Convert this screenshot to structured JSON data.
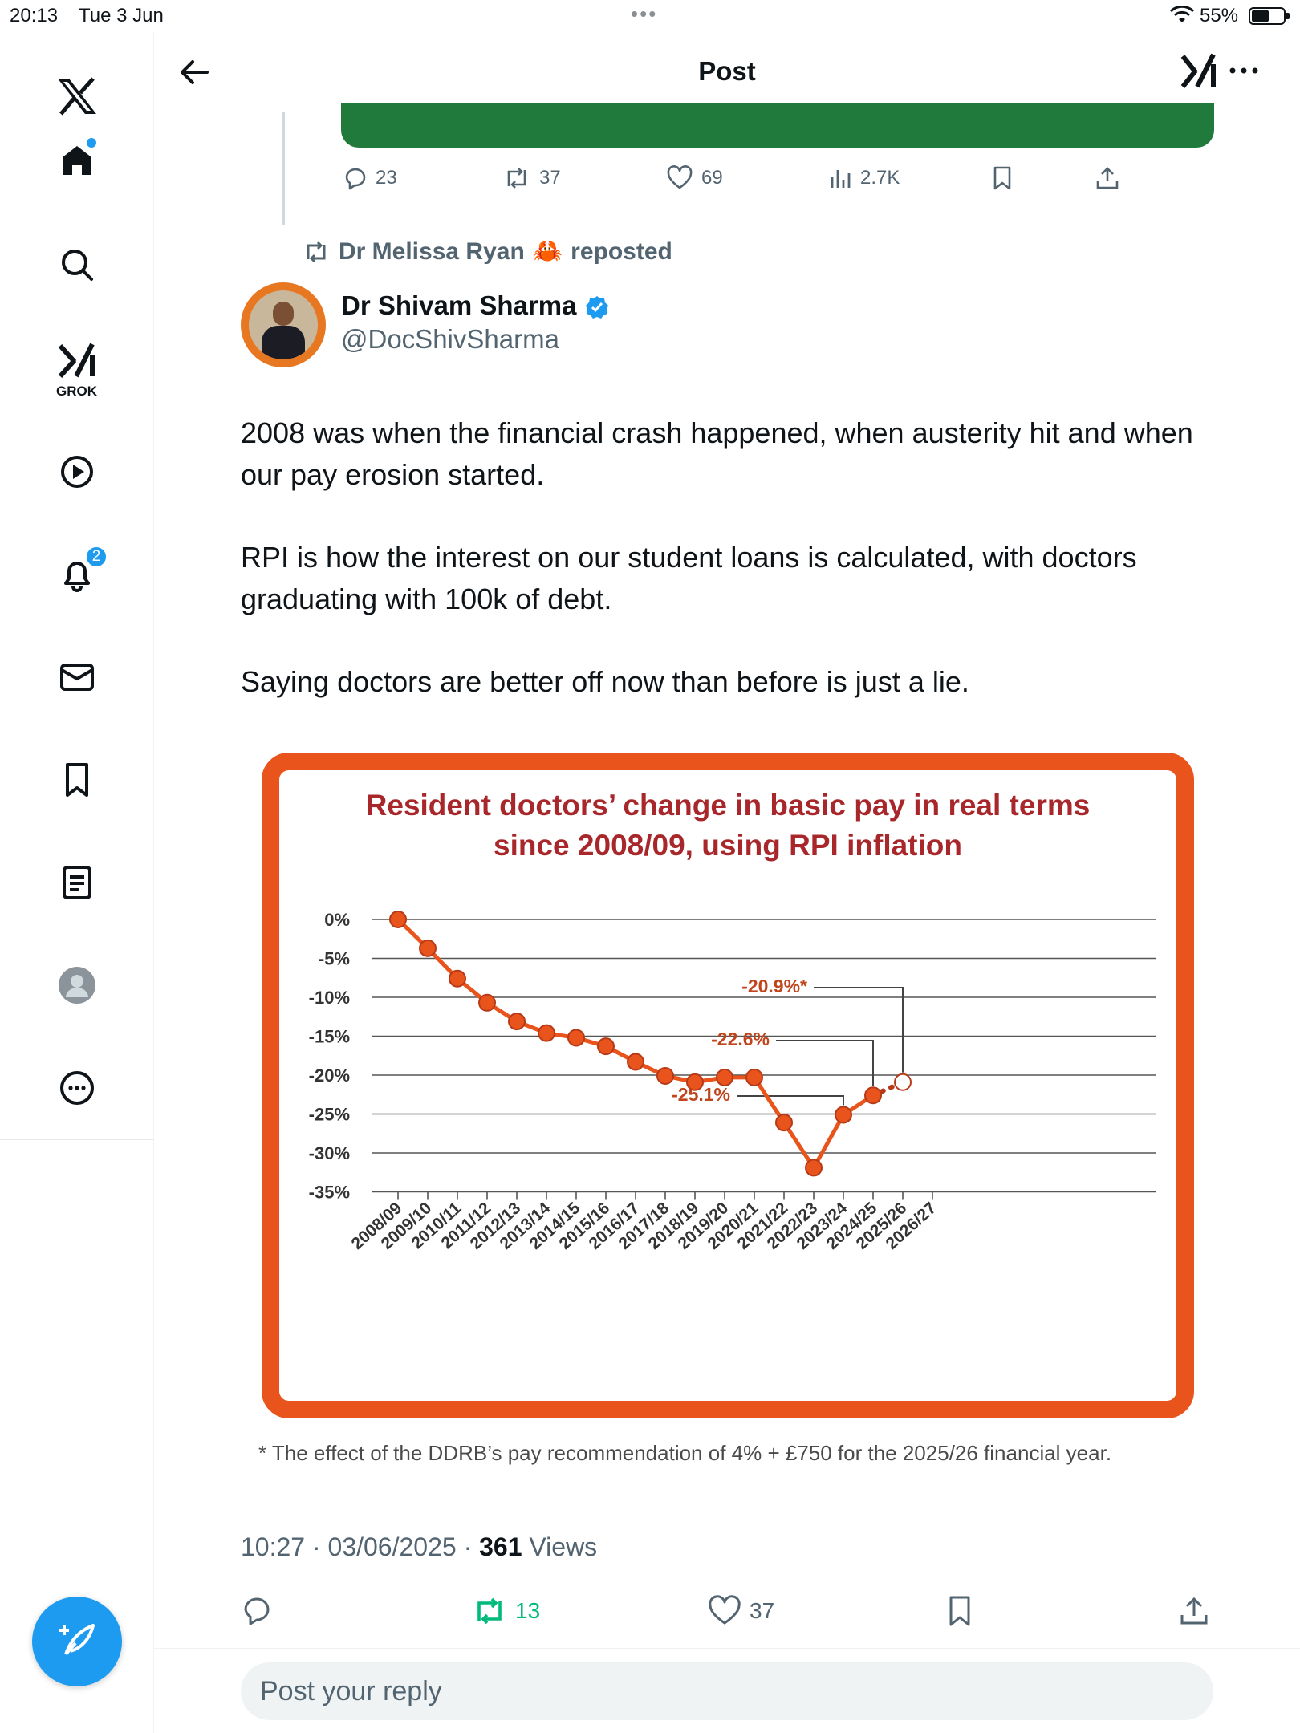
{
  "status_bar": {
    "time": "20:13",
    "date": "Tue 3 Jun",
    "battery": "55%",
    "battery_level": 0.55
  },
  "header": {
    "title": "Post"
  },
  "sidebar": {
    "items": [
      {
        "icon": "x-logo-icon"
      },
      {
        "icon": "home-icon"
      },
      {
        "icon": "search-icon"
      },
      {
        "icon": "grok-icon",
        "label": "GROK"
      },
      {
        "icon": "video-play-icon"
      },
      {
        "icon": "bell-icon",
        "badge": "2"
      },
      {
        "icon": "mail-icon"
      },
      {
        "icon": "bookmark-icon"
      },
      {
        "icon": "lists-icon"
      },
      {
        "icon": "profile-icon"
      },
      {
        "icon": "more-circle-icon"
      }
    ]
  },
  "quoted_post_actions": {
    "replies": "23",
    "reposts": "37",
    "likes": "69",
    "views": "2.7K"
  },
  "repost_by": {
    "name": "Dr Melissa Ryan",
    "emoji": "🦀",
    "suffix": "reposted"
  },
  "author": {
    "name": "Dr Shivam Sharma",
    "handle": "@DocShivSharma"
  },
  "post": {
    "paragraphs": [
      "2008 was when the financial crash happened, when austerity hit and when our pay erosion started.",
      "RPI is how the interest on our student loans is calculated, with doctors graduating with 100k of debt.",
      "Saying doctors are better off now than before is just a lie."
    ]
  },
  "chart_data": {
    "type": "line",
    "title_line1": "Resident doctors’ change in basic pay in real terms",
    "title_line2": "since 2008/09, using RPI inflation",
    "x": [
      "2008/09",
      "2009/10",
      "2010/11",
      "2011/12",
      "2012/13",
      "2013/14",
      "2014/15",
      "2015/16",
      "2016/17",
      "2017/18",
      "2018/19",
      "2019/20",
      "2020/21",
      "2021/22",
      "2022/23",
      "2023/24",
      "2024/25",
      "2025/26",
      "2026/27"
    ],
    "values": [
      0,
      -3.7,
      -7.6,
      -10.7,
      -13.1,
      -14.6,
      -15.2,
      -16.3,
      -18.3,
      -20.1,
      -20.9,
      -20.3,
      -20.3,
      -26.1,
      -31.9,
      -25.1,
      -22.6,
      -20.9,
      null
    ],
    "projected_index": 17,
    "yticks": [
      "0%",
      "-5%",
      "-10%",
      "-15%",
      "-20%",
      "-25%",
      "-30%",
      "-35%"
    ],
    "ylim": [
      -35,
      0
    ],
    "annotations": [
      {
        "label": "-25.1%",
        "index": 15
      },
      {
        "label": "-22.6%",
        "index": 16
      },
      {
        "label": "-20.9%*",
        "index": 17
      }
    ],
    "colors": {
      "line": "#e8541b",
      "title": "#a8272b",
      "frame": "#e8541b"
    },
    "grid": true
  },
  "footnote": "* The effect of the DDRB’s pay recommendation of 4% + £750 for the 2025/26 financial year.",
  "meta": {
    "time": "10:27",
    "date": "03/06/2025",
    "views": "361",
    "views_label": "Views"
  },
  "post_actions": {
    "reposts": "13",
    "likes": "37"
  },
  "reply": {
    "placeholder": "Post your reply"
  }
}
